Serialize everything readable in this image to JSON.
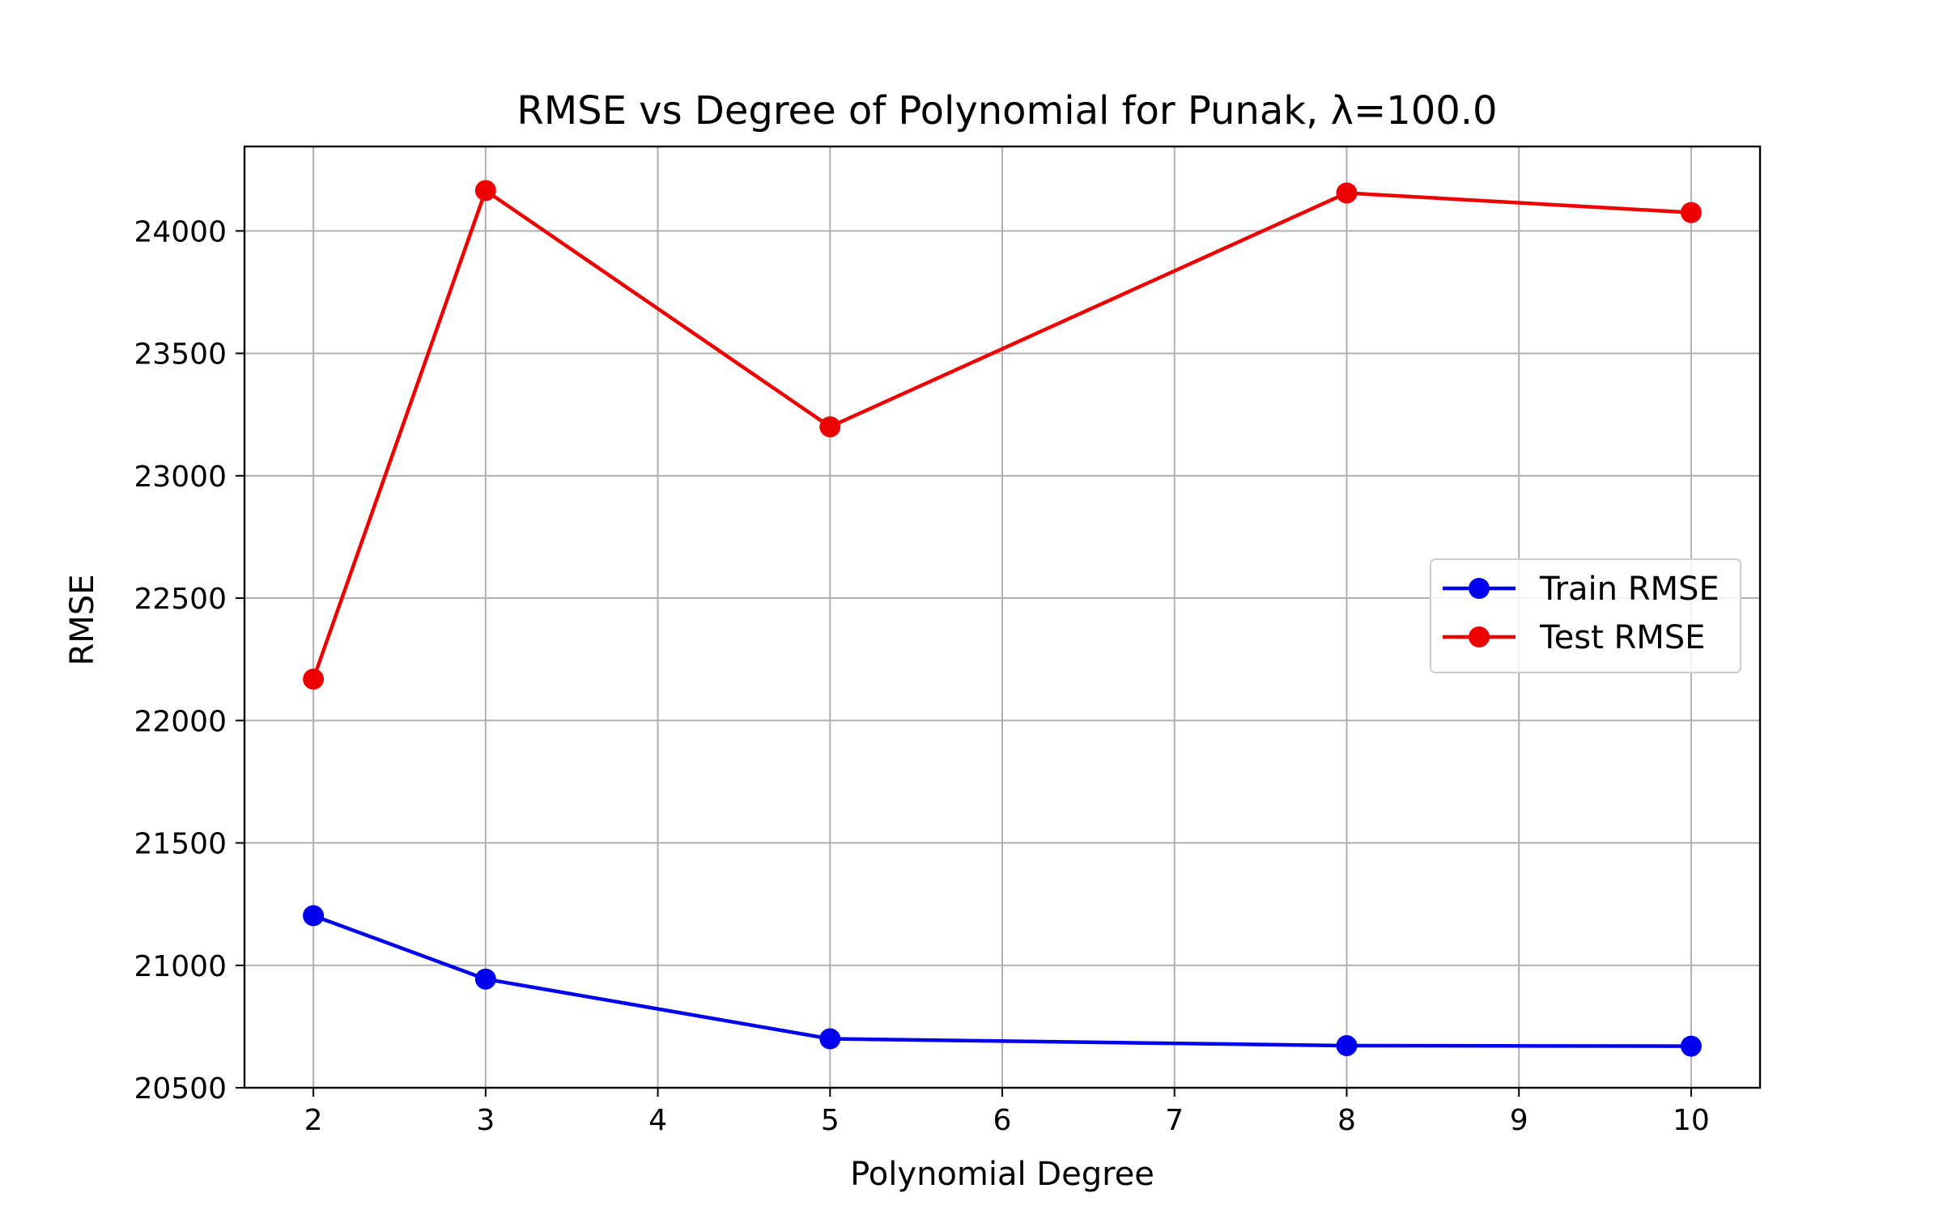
{
  "chart_data": {
    "type": "line",
    "title": "RMSE vs Degree of Polynomial for Punak, λ=100.0",
    "xlabel": "Polynomial Degree",
    "ylabel": "RMSE",
    "x": [
      2,
      3,
      5,
      8,
      10
    ],
    "xticks": [
      2,
      3,
      4,
      5,
      6,
      7,
      8,
      9,
      10
    ],
    "yticks": [
      20500,
      21000,
      21500,
      22000,
      22500,
      23000,
      23500,
      24000
    ],
    "xlim": [
      1.6,
      10.4
    ],
    "ylim": [
      20500,
      24345
    ],
    "grid": true,
    "legend_position": "center-right",
    "series": [
      {
        "name": "Train RMSE",
        "color": "#0000ee",
        "values": [
          21203,
          20944,
          20700,
          20672,
          20670
        ]
      },
      {
        "name": "Test RMSE",
        "color": "#ee0000",
        "values": [
          22169,
          24165,
          23200,
          24155,
          24075
        ]
      }
    ]
  }
}
